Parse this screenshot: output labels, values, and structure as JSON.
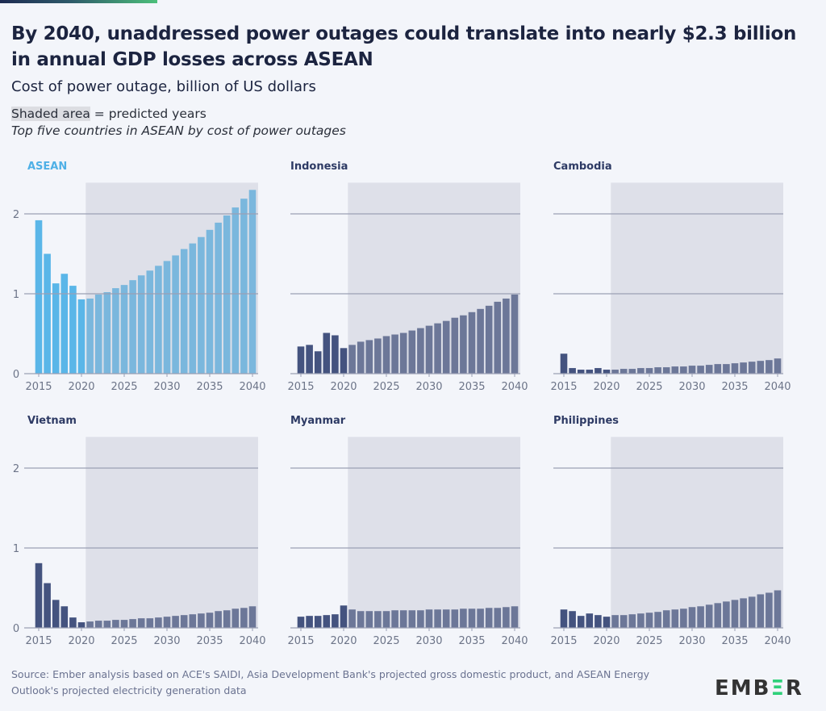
{
  "header": {
    "title": "By 2040, unaddressed power outages could translate into nearly $2.3 billion in annual GDP losses across ASEAN",
    "subtitle": "Cost of power outage, billion of US dollars",
    "note_shaded": "Shaded area",
    "note_shaded_rest": " = predicted years",
    "note_italic": "Top five countries in ASEAN by cost of power outages"
  },
  "footer": {
    "source": "Source: Ember analysis based on ACE's SAIDI, Asia Development Bank's projected gross domestic product, and ASEAN Energy Outlook's projected electricity generation data",
    "logo": "EMBER"
  },
  "colors": {
    "asean": "#5ab6e8",
    "country": "#44537f",
    "shade": "#dfe0e6",
    "background": "#f3f5fa",
    "logo_accent": "#2fd07a"
  },
  "chart_data": [
    {
      "type": "bar",
      "title": "ASEAN",
      "title_color": "#4fb0e6",
      "x": [
        2015,
        2016,
        2017,
        2018,
        2019,
        2020,
        2021,
        2022,
        2023,
        2024,
        2025,
        2026,
        2027,
        2028,
        2029,
        2030,
        2031,
        2032,
        2033,
        2034,
        2035,
        2036,
        2037,
        2038,
        2039,
        2040
      ],
      "values": [
        1.92,
        1.5,
        1.13,
        1.25,
        1.1,
        0.93,
        0.94,
        0.99,
        1.02,
        1.07,
        1.11,
        1.17,
        1.23,
        1.29,
        1.35,
        1.41,
        1.48,
        1.56,
        1.63,
        1.71,
        1.8,
        1.89,
        1.98,
        2.08,
        2.19,
        2.3
      ],
      "ylim": [
        0,
        2.4
      ],
      "yticks": [
        0,
        1,
        2
      ],
      "xticks": [
        2015,
        2020,
        2025,
        2030,
        2035,
        2040
      ],
      "predicted_from": 2021,
      "grid": true
    },
    {
      "type": "bar",
      "title": "Indonesia",
      "x": [
        2015,
        2016,
        2017,
        2018,
        2019,
        2020,
        2021,
        2022,
        2023,
        2024,
        2025,
        2026,
        2027,
        2028,
        2029,
        2030,
        2031,
        2032,
        2033,
        2034,
        2035,
        2036,
        2037,
        2038,
        2039,
        2040
      ],
      "values": [
        0.34,
        0.36,
        0.28,
        0.51,
        0.48,
        0.32,
        0.36,
        0.4,
        0.42,
        0.44,
        0.47,
        0.49,
        0.51,
        0.54,
        0.57,
        0.6,
        0.63,
        0.66,
        0.7,
        0.73,
        0.77,
        0.81,
        0.85,
        0.9,
        0.94,
        0.99
      ],
      "ylim": [
        0,
        2.4
      ],
      "yticks": [
        0,
        1,
        2
      ],
      "xticks": [
        2015,
        2020,
        2025,
        2030,
        2035,
        2040
      ],
      "predicted_from": 2021,
      "grid": true
    },
    {
      "type": "bar",
      "title": "Cambodia",
      "x": [
        2015,
        2016,
        2017,
        2018,
        2019,
        2020,
        2021,
        2022,
        2023,
        2024,
        2025,
        2026,
        2027,
        2028,
        2029,
        2030,
        2031,
        2032,
        2033,
        2034,
        2035,
        2036,
        2037,
        2038,
        2039,
        2040
      ],
      "values": [
        0.25,
        0.07,
        0.05,
        0.05,
        0.07,
        0.05,
        0.05,
        0.06,
        0.06,
        0.07,
        0.07,
        0.08,
        0.08,
        0.09,
        0.09,
        0.1,
        0.1,
        0.11,
        0.12,
        0.12,
        0.13,
        0.14,
        0.15,
        0.16,
        0.17,
        0.19
      ],
      "ylim": [
        0,
        2.4
      ],
      "yticks": [
        0,
        1,
        2
      ],
      "xticks": [
        2015,
        2020,
        2025,
        2030,
        2035,
        2040
      ],
      "predicted_from": 2021,
      "grid": true
    },
    {
      "type": "bar",
      "title": "Vietnam",
      "x": [
        2015,
        2016,
        2017,
        2018,
        2019,
        2020,
        2021,
        2022,
        2023,
        2024,
        2025,
        2026,
        2027,
        2028,
        2029,
        2030,
        2031,
        2032,
        2033,
        2034,
        2035,
        2036,
        2037,
        2038,
        2039,
        2040
      ],
      "values": [
        0.81,
        0.56,
        0.35,
        0.27,
        0.13,
        0.07,
        0.08,
        0.09,
        0.09,
        0.1,
        0.1,
        0.11,
        0.12,
        0.12,
        0.13,
        0.14,
        0.15,
        0.16,
        0.17,
        0.18,
        0.19,
        0.21,
        0.22,
        0.24,
        0.25,
        0.27
      ],
      "ylim": [
        0,
        2.4
      ],
      "yticks": [
        0,
        1,
        2
      ],
      "xticks": [
        2015,
        2020,
        2025,
        2030,
        2035,
        2040
      ],
      "predicted_from": 2021,
      "grid": true
    },
    {
      "type": "bar",
      "title": "Myanmar",
      "x": [
        2015,
        2016,
        2017,
        2018,
        2019,
        2020,
        2021,
        2022,
        2023,
        2024,
        2025,
        2026,
        2027,
        2028,
        2029,
        2030,
        2031,
        2032,
        2033,
        2034,
        2035,
        2036,
        2037,
        2038,
        2039,
        2040
      ],
      "values": [
        0.14,
        0.15,
        0.15,
        0.16,
        0.17,
        0.28,
        0.23,
        0.21,
        0.21,
        0.21,
        0.21,
        0.22,
        0.22,
        0.22,
        0.22,
        0.23,
        0.23,
        0.23,
        0.23,
        0.24,
        0.24,
        0.24,
        0.25,
        0.25,
        0.26,
        0.27
      ],
      "ylim": [
        0,
        2.4
      ],
      "yticks": [
        0,
        1,
        2
      ],
      "xticks": [
        2015,
        2020,
        2025,
        2030,
        2035,
        2040
      ],
      "predicted_from": 2021,
      "grid": true
    },
    {
      "type": "bar",
      "title": "Philippines",
      "x": [
        2015,
        2016,
        2017,
        2018,
        2019,
        2020,
        2021,
        2022,
        2023,
        2024,
        2025,
        2026,
        2027,
        2028,
        2029,
        2030,
        2031,
        2032,
        2033,
        2034,
        2035,
        2036,
        2037,
        2038,
        2039,
        2040
      ],
      "values": [
        0.23,
        0.21,
        0.15,
        0.18,
        0.16,
        0.14,
        0.16,
        0.16,
        0.17,
        0.18,
        0.19,
        0.2,
        0.22,
        0.23,
        0.24,
        0.26,
        0.27,
        0.29,
        0.31,
        0.33,
        0.35,
        0.37,
        0.39,
        0.42,
        0.44,
        0.47
      ],
      "ylim": [
        0,
        2.4
      ],
      "yticks": [
        0,
        1,
        2
      ],
      "xticks": [
        2015,
        2020,
        2025,
        2030,
        2035,
        2040
      ],
      "predicted_from": 2021,
      "grid": true
    }
  ]
}
